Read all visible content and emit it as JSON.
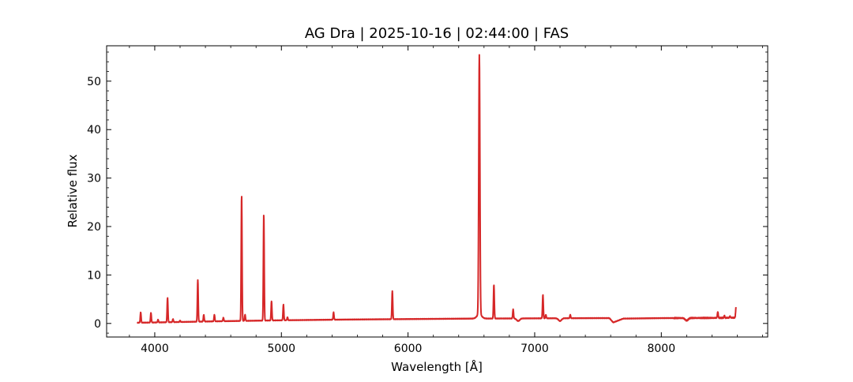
{
  "chart_data": {
    "type": "line",
    "title": "AG Dra | 2025-10-16 | 02:44:00 | FAS",
    "xlabel": "Wavelength [Å]",
    "ylabel": "Relative flux",
    "xlim": [
      3620,
      8840
    ],
    "ylim": [
      -2.8,
      57.3
    ],
    "xticks": [
      4000,
      5000,
      6000,
      7000,
      8000
    ],
    "xtick_labels": [
      "4000",
      "5000",
      "6000",
      "7000",
      "8000"
    ],
    "yticks": [
      0,
      10,
      20,
      30,
      40,
      50
    ],
    "ytick_labels": [
      "0",
      "10",
      "20",
      "30",
      "40",
      "50"
    ],
    "grid": false,
    "series": [
      {
        "color": "#d62728",
        "continuum": [
          [
            3860,
            0.15
          ],
          [
            4000,
            0.2
          ],
          [
            4500,
            0.45
          ],
          [
            5000,
            0.65
          ],
          [
            5500,
            0.8
          ],
          [
            6000,
            0.9
          ],
          [
            6500,
            1.0
          ],
          [
            7000,
            1.05
          ],
          [
            7500,
            1.1
          ],
          [
            7590,
            1.1
          ],
          [
            7620,
            0.2
          ],
          [
            7700,
            1.0
          ],
          [
            8000,
            1.1
          ],
          [
            8500,
            1.15
          ],
          [
            8590,
            1.2
          ]
        ],
        "emission_lines": [
          {
            "x": 3889,
            "y": 2.3
          },
          {
            "x": 3970,
            "y": 2.2
          },
          {
            "x": 4026,
            "y": 0.8
          },
          {
            "x": 4101,
            "y": 5.3
          },
          {
            "x": 4144,
            "y": 0.9
          },
          {
            "x": 4200,
            "y": 0.6
          },
          {
            "x": 4340,
            "y": 9.0
          },
          {
            "x": 4387,
            "y": 1.8
          },
          {
            "x": 4471,
            "y": 1.8
          },
          {
            "x": 4542,
            "y": 1.2
          },
          {
            "x": 4686,
            "y": 26.5
          },
          {
            "x": 4713,
            "y": 1.8
          },
          {
            "x": 4861,
            "y": 22.5
          },
          {
            "x": 4922,
            "y": 4.6
          },
          {
            "x": 5016,
            "y": 3.9
          },
          {
            "x": 5048,
            "y": 1.3
          },
          {
            "x": 5412,
            "y": 2.3
          },
          {
            "x": 5876,
            "y": 6.7
          },
          {
            "x": 6563,
            "y": 54.5
          },
          {
            "x": 6678,
            "y": 8.0
          },
          {
            "x": 6830,
            "y": 2.9
          },
          {
            "x": 7065,
            "y": 5.9
          },
          {
            "x": 7088,
            "y": 1.8
          },
          {
            "x": 7281,
            "y": 1.8
          },
          {
            "x": 8446,
            "y": 2.4
          },
          {
            "x": 8498,
            "y": 1.6
          },
          {
            "x": 8542,
            "y": 1.5
          },
          {
            "x": 8590,
            "y": 3.4
          }
        ],
        "absorption_features": [
          {
            "x": 6870,
            "y": 0.5
          },
          {
            "x": 7200,
            "y": 0.5
          },
          {
            "x": 8200,
            "y": 0.6
          }
        ]
      }
    ]
  }
}
